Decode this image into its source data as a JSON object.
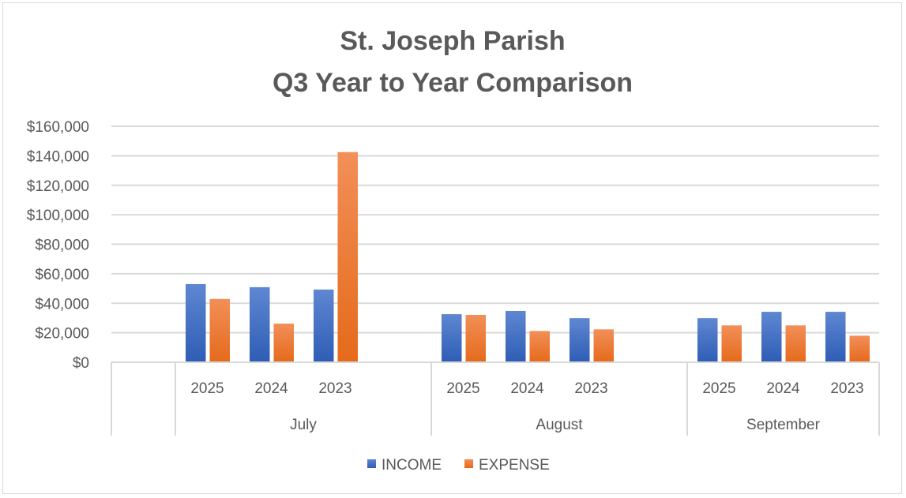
{
  "chart_data": {
    "type": "bar",
    "title": [
      "St. Joseph Parish",
      "Q3 Year to Year Comparison"
    ],
    "xlabel": "",
    "ylabel": "",
    "ylim": [
      0,
      160000
    ],
    "yticks": [
      0,
      20000,
      40000,
      60000,
      80000,
      100000,
      120000,
      140000,
      160000
    ],
    "ytick_labels": [
      "$0",
      "$20,000",
      "$40,000",
      "$60,000",
      "$80,000",
      "$100,000",
      "$120,000",
      "$140,000",
      "$160,000"
    ],
    "grid": true,
    "legend_position": "bottom",
    "groups": [
      {
        "label": "July",
        "categories": [
          "2025",
          "2024",
          "2023"
        ]
      },
      {
        "label": "August",
        "categories": [
          "2025",
          "2024",
          "2023"
        ]
      },
      {
        "label": "September",
        "categories": [
          "2025",
          "2024",
          "2023"
        ]
      }
    ],
    "series": [
      {
        "name": "INCOME",
        "color": "#4472c4",
        "values": [
          53000,
          50900,
          49300,
          32600,
          34800,
          29900,
          29900,
          34200,
          34200
        ]
      },
      {
        "name": "EXPENSE",
        "color": "#ed7d31",
        "values": [
          42900,
          26200,
          142500,
          32100,
          21200,
          22300,
          25000,
          25000,
          18000
        ]
      }
    ]
  }
}
